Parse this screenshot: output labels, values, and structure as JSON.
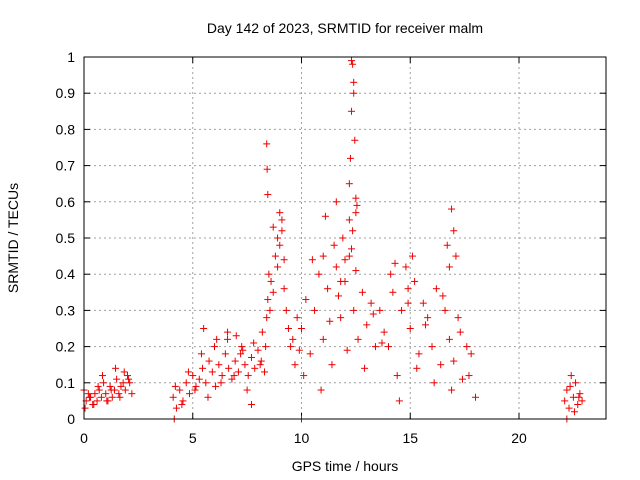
{
  "chart_data": {
    "type": "scatter",
    "title": "Day 142 of 2023, SRMTID for receiver malm",
    "xlabel": "GPS time / hours",
    "ylabel": "SRMTID / TECUs",
    "xlim": [
      0,
      24
    ],
    "ylim": [
      0,
      1
    ],
    "xticks": [
      0,
      5,
      10,
      15,
      20
    ],
    "yticks": [
      0,
      0.1,
      0.2,
      0.3,
      0.4,
      0.5,
      0.6,
      0.7,
      0.8,
      0.9,
      1
    ],
    "xtick_labels": [
      "0",
      "5",
      "10",
      "15",
      "20"
    ],
    "ytick_labels": [
      "0",
      "0.1",
      "0.2",
      "0.3",
      "0.4",
      "0.5",
      "0.6",
      "0.7",
      "0.8",
      "0.9",
      "1"
    ],
    "grid": true,
    "marker": "+",
    "color": "#ee0000",
    "series": [
      {
        "name": "SRMTID",
        "x": [
          0.0,
          0.1,
          0.2,
          0.3,
          0.4,
          0.5,
          0.6,
          0.7,
          0.8,
          0.9,
          1.0,
          1.1,
          1.2,
          1.3,
          1.4,
          1.5,
          1.6,
          1.7,
          1.8,
          1.9,
          2.0,
          2.1,
          2.2,
          0.05,
          0.25,
          0.45,
          0.65,
          0.85,
          1.05,
          1.25,
          1.45,
          1.65,
          1.85,
          2.05,
          4.1,
          4.25,
          4.4,
          4.55,
          4.7,
          4.85,
          5.0,
          5.15,
          5.3,
          5.45,
          5.6,
          5.75,
          5.9,
          6.05,
          6.2,
          6.35,
          6.5,
          6.65,
          6.8,
          6.95,
          7.1,
          7.25,
          7.4,
          7.55,
          7.7,
          7.85,
          8.0,
          8.15,
          8.3,
          4.2,
          4.5,
          4.8,
          5.1,
          5.4,
          5.7,
          6.0,
          6.3,
          6.6,
          6.9,
          7.2,
          7.5,
          7.8,
          8.1,
          5.5,
          6.1,
          6.6,
          7.0,
          7.3,
          7.7,
          8.2,
          8.35,
          8.4,
          8.45,
          8.5,
          8.55,
          8.6,
          8.7,
          8.8,
          8.9,
          9.0,
          9.1,
          9.2,
          9.3,
          9.4,
          9.5,
          9.6,
          9.7,
          9.8,
          9.9,
          8.4,
          8.42,
          8.45,
          8.7,
          8.9,
          9.0,
          9.1,
          9.2,
          10.0,
          10.2,
          10.4,
          10.6,
          10.8,
          11.0,
          11.2,
          11.4,
          11.6,
          11.8,
          12.0,
          12.2,
          12.4,
          12.6,
          12.8,
          13.0,
          13.2,
          13.4,
          13.6,
          13.8,
          10.1,
          10.5,
          10.9,
          11.3,
          11.7,
          12.1,
          12.5,
          12.9,
          13.3,
          13.7,
          11.0,
          11.1,
          11.5,
          11.6,
          11.8,
          11.9,
          12.0,
          12.2,
          12.25,
          12.3,
          12.3,
          12.35,
          12.4,
          12.4,
          12.45,
          12.5,
          12.55,
          12.3,
          12.35,
          12.2,
          12.5,
          14.0,
          14.2,
          14.4,
          14.6,
          14.8,
          15.0,
          15.2,
          15.4,
          15.6,
          15.8,
          16.0,
          16.2,
          16.4,
          16.6,
          16.8,
          17.0,
          17.2,
          17.4,
          17.6,
          17.8,
          18.0,
          14.1,
          14.5,
          14.9,
          15.3,
          15.7,
          16.1,
          16.5,
          16.9,
          17.3,
          17.7,
          14.3,
          14.9,
          15.1,
          16.7,
          16.8,
          16.9,
          17.0,
          17.1,
          22.1,
          22.2,
          22.3,
          22.4,
          22.5,
          22.6,
          22.7,
          22.8,
          22.9,
          22.35,
          22.55,
          22.75,
          4.15,
          10.0,
          22.2
        ],
        "y": [
          0.08,
          0.05,
          0.07,
          0.06,
          0.04,
          0.07,
          0.05,
          0.08,
          0.06,
          0.1,
          0.07,
          0.05,
          0.09,
          0.06,
          0.08,
          0.11,
          0.07,
          0.09,
          0.1,
          0.08,
          0.12,
          0.1,
          0.07,
          0.03,
          0.06,
          0.04,
          0.09,
          0.12,
          0.05,
          0.08,
          0.14,
          0.06,
          0.13,
          0.11,
          0.06,
          0.03,
          0.08,
          0.05,
          0.1,
          0.07,
          0.12,
          0.09,
          0.11,
          0.14,
          0.1,
          0.16,
          0.13,
          0.09,
          0.15,
          0.12,
          0.18,
          0.14,
          0.11,
          0.16,
          0.13,
          0.2,
          0.15,
          0.12,
          0.17,
          0.14,
          0.19,
          0.16,
          0.13,
          0.09,
          0.04,
          0.13,
          0.08,
          0.18,
          0.06,
          0.2,
          0.1,
          0.22,
          0.12,
          0.18,
          0.08,
          0.21,
          0.15,
          0.25,
          0.22,
          0.24,
          0.23,
          0.19,
          0.04,
          0.24,
          0.2,
          0.28,
          0.33,
          0.4,
          0.3,
          0.38,
          0.35,
          0.45,
          0.42,
          0.48,
          0.52,
          0.36,
          0.3,
          0.25,
          0.2,
          0.22,
          0.15,
          0.28,
          0.19,
          0.76,
          0.69,
          0.62,
          0.53,
          0.5,
          0.57,
          0.55,
          0.44,
          0.25,
          0.33,
          0.18,
          0.3,
          0.4,
          0.22,
          0.36,
          0.15,
          0.42,
          0.28,
          0.38,
          0.45,
          0.3,
          0.22,
          0.35,
          0.26,
          0.32,
          0.2,
          0.3,
          0.24,
          0.12,
          0.44,
          0.08,
          0.27,
          0.34,
          0.19,
          0.41,
          0.14,
          0.29,
          0.21,
          0.45,
          0.56,
          0.48,
          0.6,
          0.38,
          0.5,
          0.44,
          0.65,
          0.72,
          0.85,
          0.99,
          0.98,
          0.93,
          0.9,
          0.77,
          0.61,
          0.59,
          0.47,
          0.52,
          0.55,
          0.57,
          0.2,
          0.35,
          0.12,
          0.3,
          0.42,
          0.25,
          0.38,
          0.18,
          0.32,
          0.28,
          0.2,
          0.36,
          0.15,
          0.3,
          0.22,
          0.16,
          0.28,
          0.11,
          0.2,
          0.18,
          0.06,
          0.4,
          0.05,
          0.32,
          0.14,
          0.26,
          0.1,
          0.34,
          0.08,
          0.24,
          0.12,
          0.43,
          0.36,
          0.45,
          0.48,
          0.42,
          0.58,
          0.52,
          0.45,
          0.05,
          0.08,
          0.03,
          0.12,
          0.06,
          0.1,
          0.04,
          0.07,
          0.05,
          0.09,
          0.02,
          0.06,
          0.0,
          0.0,
          0.0
        ]
      }
    ]
  }
}
